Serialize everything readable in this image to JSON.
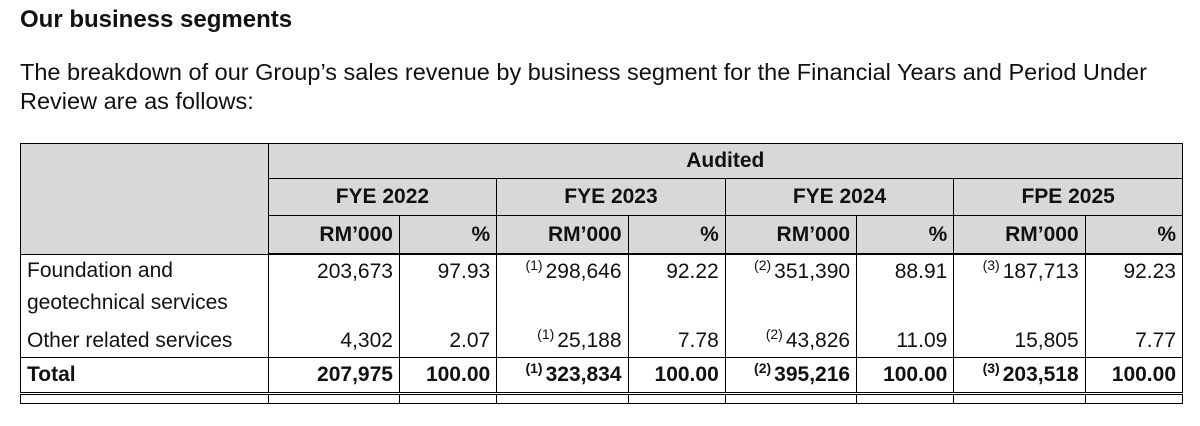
{
  "heading": "Our business segments",
  "intro": "The breakdown of our Group’s sales revenue by business segment for the Financial Years and Period Under Review are as follows:",
  "table": {
    "audited_label": "Audited",
    "periods": [
      "FYE 2022",
      "FYE 2023",
      "FYE 2024",
      "FPE 2025"
    ],
    "unit_amount": "RM’000",
    "unit_pct": "%",
    "rows": [
      {
        "label": "Foundation and geotechnical services",
        "cells": [
          {
            "note": "",
            "amount": "203,673",
            "pct": "97.93"
          },
          {
            "note": "(1)",
            "amount": "298,646",
            "pct": "92.22"
          },
          {
            "note": "(2)",
            "amount": "351,390",
            "pct": "88.91"
          },
          {
            "note": "(3)",
            "amount": "187,713",
            "pct": "92.23"
          }
        ]
      },
      {
        "label": "Other related services",
        "cells": [
          {
            "note": "",
            "amount": "4,302",
            "pct": "2.07"
          },
          {
            "note": "(1)",
            "amount": "25,188",
            "pct": "7.78"
          },
          {
            "note": "(2)",
            "amount": "43,826",
            "pct": "11.09"
          },
          {
            "note": "",
            "amount": "15,805",
            "pct": "7.77"
          }
        ]
      }
    ],
    "total": {
      "label": "Total",
      "cells": [
        {
          "note": "",
          "amount": "207,975",
          "pct": "100.00"
        },
        {
          "note": "(1)",
          "amount": "323,834",
          "pct": "100.00"
        },
        {
          "note": "(2)",
          "amount": "395,216",
          "pct": "100.00"
        },
        {
          "note": "(3)",
          "amount": "203,518",
          "pct": "100.00"
        }
      ]
    }
  }
}
